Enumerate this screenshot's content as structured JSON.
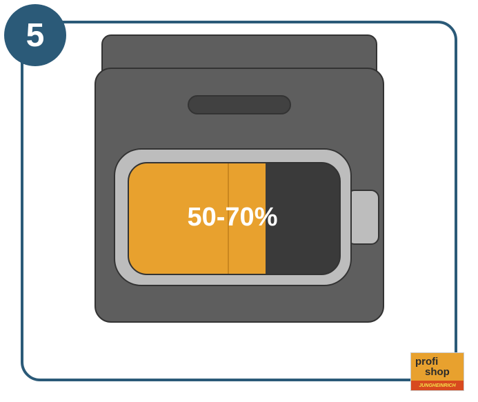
{
  "card": {
    "border_color": "#2b5a78",
    "bg": "#ffffff",
    "border_radius": 28
  },
  "badge": {
    "number": "5",
    "bg": "#2b5a78",
    "fg": "#ffffff"
  },
  "device": {
    "lid_color": "#5e5e5e",
    "body_color": "#5e5e5e",
    "slot_color": "#414141",
    "stroke": "#333333"
  },
  "battery": {
    "body_bg": "#bdbdbd",
    "tip_bg": "#bdbdbd",
    "inner_bg": "#3a3a3a",
    "fill_color": "#e8a12e",
    "fill_percent": 65,
    "divider_at_percent": 47,
    "divider_color": "#c9861f",
    "stroke": "#333333",
    "label": "50-70%",
    "label_color": "#ffffff"
  },
  "logo": {
    "bg": "#e8a12e",
    "text1": "profi",
    "text2": "shop",
    "text_color": "#2a2a2a",
    "sub_bg": "#d84a1f",
    "sub_text": "JUNGHEINRICH",
    "sub_color": "#f5e04a",
    "border": "#cccccc"
  }
}
